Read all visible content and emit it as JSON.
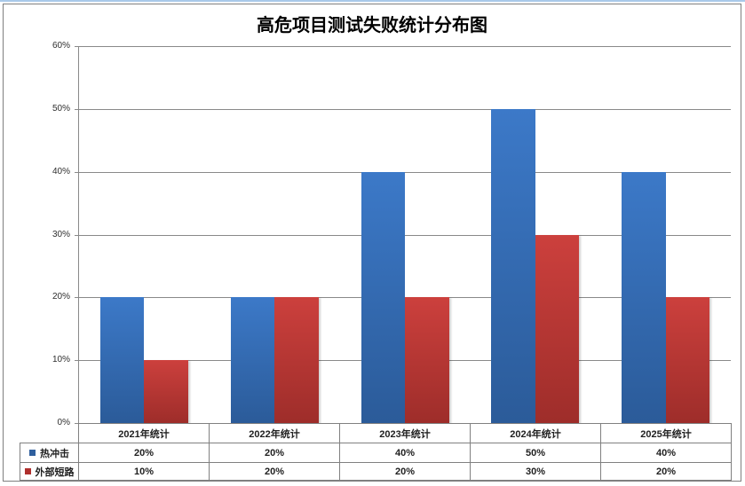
{
  "chart_data": {
    "type": "bar",
    "title": "高危项目测试失败统计分布图",
    "categories": [
      "2021年统计",
      "2022年统计",
      "2023年统计",
      "2024年统计",
      "2025年统计"
    ],
    "series": [
      {
        "name": "热冲击",
        "values": [
          20,
          20,
          40,
          50,
          40
        ],
        "labels": [
          "20%",
          "20%",
          "40%",
          "50%",
          "40%"
        ],
        "color_top": "#3C79C8",
        "color_bottom": "#2B5B99",
        "legend_color": "#2F5F9E"
      },
      {
        "name": "外部短路",
        "values": [
          10,
          20,
          20,
          30,
          20
        ],
        "labels": [
          "10%",
          "20%",
          "20%",
          "30%",
          "20%"
        ],
        "color_top": "#CC403D",
        "color_bottom": "#9E2D2A",
        "legend_color": "#AF2F2D"
      }
    ],
    "ylim": [
      0,
      60
    ],
    "ytick_step": 10,
    "ytick_labels": [
      "0%",
      "10%",
      "20%",
      "30%",
      "40%",
      "50%",
      "60%"
    ],
    "grid": true,
    "legend_position": "bottom-left-of-data-table",
    "data_table_shown": true
  },
  "colors": {
    "top_strip": "#A9C9EA",
    "chart_border": "#7F7F7F",
    "gridline": "#898989",
    "table_border": "#808080",
    "title_text": "#000000",
    "axis_label_text": "#2E2E2E",
    "table_text": "#1F1F1F",
    "background": "#FFFFFF"
  }
}
